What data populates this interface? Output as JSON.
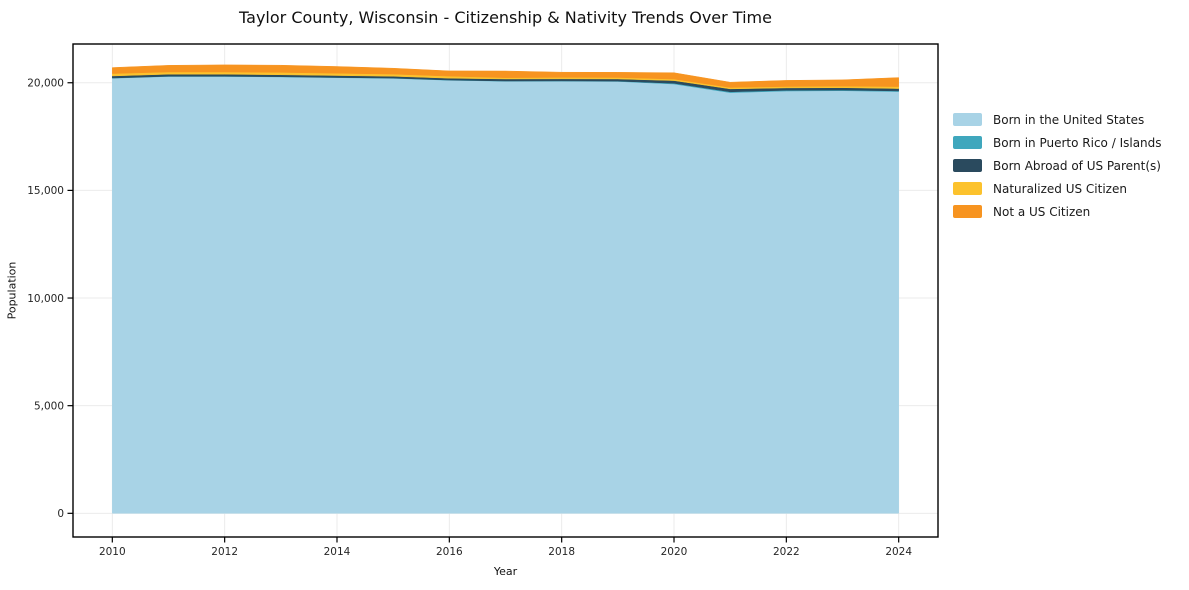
{
  "chart_data": {
    "type": "area",
    "stacked": true,
    "title": "Taylor County, Wisconsin - Citizenship & Nativity Trends Over Time",
    "xlabel": "Year",
    "ylabel": "Population",
    "x": [
      2010,
      2011,
      2012,
      2013,
      2014,
      2015,
      2016,
      2017,
      2018,
      2019,
      2020,
      2021,
      2022,
      2023,
      2024
    ],
    "series": [
      {
        "name": "Born in the United States",
        "color": "#a8d3e6",
        "values": [
          20210,
          20290,
          20290,
          20270,
          20235,
          20205,
          20115,
          20070,
          20075,
          20060,
          19940,
          19540,
          19615,
          19630,
          19590
        ]
      },
      {
        "name": "Born in Puerto Rico / Islands",
        "color": "#3fa7bd",
        "values": [
          10,
          10,
          10,
          10,
          10,
          10,
          10,
          10,
          10,
          15,
          35,
          40,
          35,
          30,
          30
        ]
      },
      {
        "name": "Born Abroad of US Parent(s)",
        "color": "#2a4a5e",
        "values": [
          95,
          95,
          95,
          90,
          90,
          85,
          85,
          95,
          95,
          100,
          125,
          135,
          110,
          110,
          110
        ]
      },
      {
        "name": "Naturalized US Citizen",
        "color": "#fcc22d",
        "values": [
          110,
          105,
          105,
          110,
          105,
          100,
          95,
          60,
          70,
          70,
          70,
          65,
          65,
          70,
          90
        ]
      },
      {
        "name": "Not a US Citizen",
        "color": "#f79420",
        "values": [
          280,
          310,
          330,
          335,
          315,
          275,
          245,
          310,
          240,
          240,
          295,
          245,
          285,
          295,
          420
        ]
      }
    ],
    "x_ticks": [
      2010,
      2012,
      2014,
      2016,
      2018,
      2020,
      2022,
      2024
    ],
    "y_ticks": [
      0,
      5000,
      10000,
      15000,
      20000
    ],
    "y_tick_labels": [
      "0",
      "5,000",
      "10,000",
      "15,000",
      "20,000"
    ],
    "xlim": [
      2009.3,
      2024.7
    ],
    "ylim": [
      -1100,
      21800
    ],
    "grid": true,
    "legend_position": "right",
    "grid_color": "#ebebeb",
    "spine_color": "#000000",
    "tick_label_color": "#262626"
  }
}
